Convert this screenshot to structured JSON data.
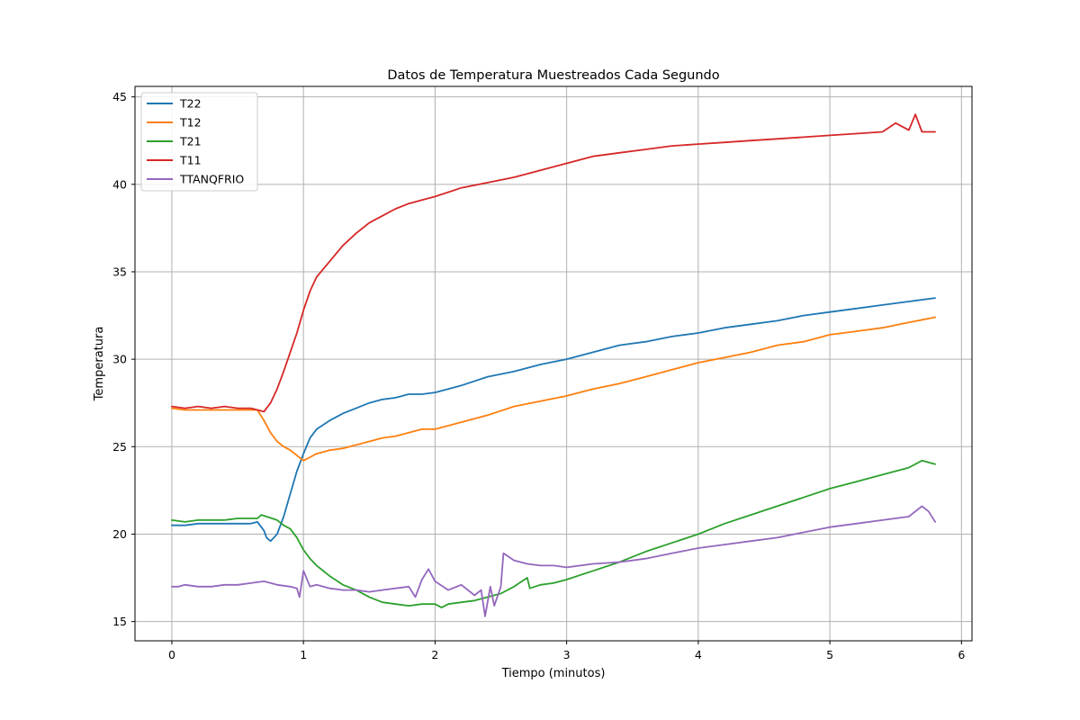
{
  "chart_data": {
    "type": "line",
    "title": "Datos de Temperatura Muestreados Cada Segundo",
    "xlabel": "Tiempo (minutos)",
    "ylabel": "Temperatura",
    "xlim": [
      -0.28,
      6.08
    ],
    "ylim": [
      13.9,
      45.6
    ],
    "xticks": [
      0,
      1,
      2,
      3,
      4,
      5,
      6
    ],
    "yticks": [
      15,
      20,
      25,
      30,
      35,
      40,
      45
    ],
    "grid": true,
    "legend_position": "top-left",
    "series": [
      {
        "name": "T22",
        "color": "#1f77b4",
        "points": [
          [
            0,
            20.5
          ],
          [
            0.1,
            20.5
          ],
          [
            0.2,
            20.6
          ],
          [
            0.3,
            20.6
          ],
          [
            0.4,
            20.6
          ],
          [
            0.5,
            20.6
          ],
          [
            0.6,
            20.6
          ],
          [
            0.65,
            20.7
          ],
          [
            0.7,
            20.2
          ],
          [
            0.72,
            19.8
          ],
          [
            0.75,
            19.6
          ],
          [
            0.8,
            20.0
          ],
          [
            0.85,
            21.0
          ],
          [
            0.9,
            22.3
          ],
          [
            0.95,
            23.6
          ],
          [
            1.0,
            24.6
          ],
          [
            1.05,
            25.5
          ],
          [
            1.1,
            26.0
          ],
          [
            1.2,
            26.5
          ],
          [
            1.3,
            26.9
          ],
          [
            1.4,
            27.2
          ],
          [
            1.5,
            27.5
          ],
          [
            1.6,
            27.7
          ],
          [
            1.7,
            27.8
          ],
          [
            1.8,
            28.0
          ],
          [
            1.9,
            28.0
          ],
          [
            2.0,
            28.1
          ],
          [
            2.2,
            28.5
          ],
          [
            2.4,
            29.0
          ],
          [
            2.6,
            29.3
          ],
          [
            2.8,
            29.7
          ],
          [
            3.0,
            30.0
          ],
          [
            3.2,
            30.4
          ],
          [
            3.4,
            30.8
          ],
          [
            3.6,
            31.0
          ],
          [
            3.8,
            31.3
          ],
          [
            4.0,
            31.5
          ],
          [
            4.2,
            31.8
          ],
          [
            4.4,
            32.0
          ],
          [
            4.6,
            32.2
          ],
          [
            4.8,
            32.5
          ],
          [
            5.0,
            32.7
          ],
          [
            5.2,
            32.9
          ],
          [
            5.4,
            33.1
          ],
          [
            5.6,
            33.3
          ],
          [
            5.8,
            33.5
          ]
        ]
      },
      {
        "name": "T12",
        "color": "#ff7f0e",
        "points": [
          [
            0,
            27.2
          ],
          [
            0.1,
            27.1
          ],
          [
            0.2,
            27.1
          ],
          [
            0.3,
            27.1
          ],
          [
            0.4,
            27.1
          ],
          [
            0.5,
            27.1
          ],
          [
            0.6,
            27.1
          ],
          [
            0.65,
            27.1
          ],
          [
            0.7,
            26.5
          ],
          [
            0.75,
            25.8
          ],
          [
            0.8,
            25.3
          ],
          [
            0.85,
            25.0
          ],
          [
            0.9,
            24.8
          ],
          [
            0.95,
            24.5
          ],
          [
            1.0,
            24.2
          ],
          [
            1.05,
            24.4
          ],
          [
            1.1,
            24.6
          ],
          [
            1.2,
            24.8
          ],
          [
            1.3,
            24.9
          ],
          [
            1.4,
            25.1
          ],
          [
            1.5,
            25.3
          ],
          [
            1.6,
            25.5
          ],
          [
            1.7,
            25.6
          ],
          [
            1.8,
            25.8
          ],
          [
            1.9,
            26.0
          ],
          [
            2.0,
            26.0
          ],
          [
            2.2,
            26.4
          ],
          [
            2.4,
            26.8
          ],
          [
            2.6,
            27.3
          ],
          [
            2.8,
            27.6
          ],
          [
            3.0,
            27.9
          ],
          [
            3.2,
            28.3
          ],
          [
            3.4,
            28.6
          ],
          [
            3.6,
            29.0
          ],
          [
            3.8,
            29.4
          ],
          [
            4.0,
            29.8
          ],
          [
            4.2,
            30.1
          ],
          [
            4.4,
            30.4
          ],
          [
            4.6,
            30.8
          ],
          [
            4.8,
            31.0
          ],
          [
            5.0,
            31.4
          ],
          [
            5.2,
            31.6
          ],
          [
            5.4,
            31.8
          ],
          [
            5.6,
            32.1
          ],
          [
            5.8,
            32.4
          ]
        ]
      },
      {
        "name": "T21",
        "color": "#2ca02c",
        "points": [
          [
            0,
            20.8
          ],
          [
            0.1,
            20.7
          ],
          [
            0.2,
            20.8
          ],
          [
            0.3,
            20.8
          ],
          [
            0.4,
            20.8
          ],
          [
            0.5,
            20.9
          ],
          [
            0.6,
            20.9
          ],
          [
            0.65,
            20.9
          ],
          [
            0.68,
            21.1
          ],
          [
            0.72,
            21.0
          ],
          [
            0.8,
            20.8
          ],
          [
            0.85,
            20.5
          ],
          [
            0.9,
            20.3
          ],
          [
            0.95,
            19.8
          ],
          [
            1.0,
            19.1
          ],
          [
            1.05,
            18.6
          ],
          [
            1.1,
            18.2
          ],
          [
            1.2,
            17.6
          ],
          [
            1.3,
            17.1
          ],
          [
            1.4,
            16.8
          ],
          [
            1.5,
            16.4
          ],
          [
            1.6,
            16.1
          ],
          [
            1.7,
            16.0
          ],
          [
            1.8,
            15.9
          ],
          [
            1.9,
            16.0
          ],
          [
            2.0,
            16.0
          ],
          [
            2.05,
            15.8
          ],
          [
            2.1,
            16.0
          ],
          [
            2.2,
            16.1
          ],
          [
            2.3,
            16.2
          ],
          [
            2.4,
            16.4
          ],
          [
            2.5,
            16.6
          ],
          [
            2.6,
            17.0
          ],
          [
            2.7,
            17.5
          ],
          [
            2.72,
            16.9
          ],
          [
            2.8,
            17.1
          ],
          [
            2.9,
            17.2
          ],
          [
            3.0,
            17.4
          ],
          [
            3.2,
            17.9
          ],
          [
            3.4,
            18.4
          ],
          [
            3.6,
            19.0
          ],
          [
            3.8,
            19.5
          ],
          [
            4.0,
            20.0
          ],
          [
            4.2,
            20.6
          ],
          [
            4.4,
            21.1
          ],
          [
            4.6,
            21.6
          ],
          [
            4.8,
            22.1
          ],
          [
            5.0,
            22.6
          ],
          [
            5.2,
            23.0
          ],
          [
            5.4,
            23.4
          ],
          [
            5.6,
            23.8
          ],
          [
            5.7,
            24.2
          ],
          [
            5.8,
            24.0
          ]
        ]
      },
      {
        "name": "T11",
        "color": "#d62728",
        "points": [
          [
            0,
            27.3
          ],
          [
            0.1,
            27.2
          ],
          [
            0.2,
            27.3
          ],
          [
            0.3,
            27.2
          ],
          [
            0.4,
            27.3
          ],
          [
            0.5,
            27.2
          ],
          [
            0.6,
            27.2
          ],
          [
            0.65,
            27.1
          ],
          [
            0.7,
            27.0
          ],
          [
            0.75,
            27.5
          ],
          [
            0.8,
            28.3
          ],
          [
            0.85,
            29.3
          ],
          [
            0.9,
            30.4
          ],
          [
            0.95,
            31.5
          ],
          [
            1.0,
            32.8
          ],
          [
            1.05,
            33.9
          ],
          [
            1.1,
            34.7
          ],
          [
            1.2,
            35.6
          ],
          [
            1.3,
            36.5
          ],
          [
            1.4,
            37.2
          ],
          [
            1.5,
            37.8
          ],
          [
            1.6,
            38.2
          ],
          [
            1.7,
            38.6
          ],
          [
            1.8,
            38.9
          ],
          [
            1.9,
            39.1
          ],
          [
            2.0,
            39.3
          ],
          [
            2.2,
            39.8
          ],
          [
            2.4,
            40.1
          ],
          [
            2.6,
            40.4
          ],
          [
            2.8,
            40.8
          ],
          [
            3.0,
            41.2
          ],
          [
            3.2,
            41.6
          ],
          [
            3.4,
            41.8
          ],
          [
            3.6,
            42.0
          ],
          [
            3.8,
            42.2
          ],
          [
            4.0,
            42.3
          ],
          [
            4.2,
            42.4
          ],
          [
            4.4,
            42.5
          ],
          [
            4.6,
            42.6
          ],
          [
            4.8,
            42.7
          ],
          [
            5.0,
            42.8
          ],
          [
            5.2,
            42.9
          ],
          [
            5.4,
            43.0
          ],
          [
            5.5,
            43.5
          ],
          [
            5.6,
            43.1
          ],
          [
            5.65,
            44.0
          ],
          [
            5.7,
            43.0
          ],
          [
            5.8,
            43.0
          ]
        ]
      },
      {
        "name": "TTANQFRIO",
        "color": "#9467bd",
        "points": [
          [
            0,
            17.0
          ],
          [
            0.05,
            17.0
          ],
          [
            0.1,
            17.1
          ],
          [
            0.2,
            17.0
          ],
          [
            0.3,
            17.0
          ],
          [
            0.4,
            17.1
          ],
          [
            0.5,
            17.1
          ],
          [
            0.6,
            17.2
          ],
          [
            0.7,
            17.3
          ],
          [
            0.8,
            17.1
          ],
          [
            0.9,
            17.0
          ],
          [
            0.95,
            16.9
          ],
          [
            0.97,
            16.4
          ],
          [
            1.0,
            17.9
          ],
          [
            1.05,
            17.0
          ],
          [
            1.1,
            17.1
          ],
          [
            1.2,
            16.9
          ],
          [
            1.3,
            16.8
          ],
          [
            1.4,
            16.8
          ],
          [
            1.5,
            16.7
          ],
          [
            1.6,
            16.8
          ],
          [
            1.7,
            16.9
          ],
          [
            1.8,
            17.0
          ],
          [
            1.85,
            16.4
          ],
          [
            1.9,
            17.4
          ],
          [
            1.95,
            18.0
          ],
          [
            2.0,
            17.3
          ],
          [
            2.1,
            16.8
          ],
          [
            2.2,
            17.1
          ],
          [
            2.3,
            16.5
          ],
          [
            2.35,
            16.8
          ],
          [
            2.38,
            15.3
          ],
          [
            2.42,
            17.0
          ],
          [
            2.45,
            15.9
          ],
          [
            2.5,
            17.0
          ],
          [
            2.52,
            18.9
          ],
          [
            2.6,
            18.5
          ],
          [
            2.7,
            18.3
          ],
          [
            2.8,
            18.2
          ],
          [
            2.9,
            18.2
          ],
          [
            3.0,
            18.1
          ],
          [
            3.2,
            18.3
          ],
          [
            3.4,
            18.4
          ],
          [
            3.6,
            18.6
          ],
          [
            3.8,
            18.9
          ],
          [
            4.0,
            19.2
          ],
          [
            4.2,
            19.4
          ],
          [
            4.4,
            19.6
          ],
          [
            4.6,
            19.8
          ],
          [
            4.8,
            20.1
          ],
          [
            5.0,
            20.4
          ],
          [
            5.2,
            20.6
          ],
          [
            5.4,
            20.8
          ],
          [
            5.6,
            21.0
          ],
          [
            5.7,
            21.6
          ],
          [
            5.75,
            21.3
          ],
          [
            5.8,
            20.7
          ]
        ]
      }
    ]
  }
}
